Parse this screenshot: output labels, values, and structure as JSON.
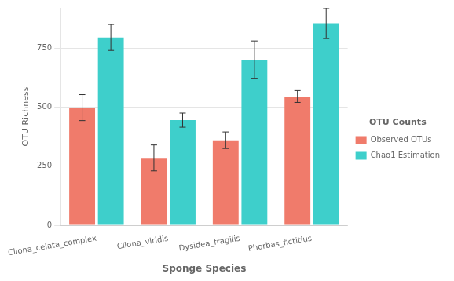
{
  "chart_data": {
    "type": "bar",
    "categories": [
      "Cliona_celata_complex",
      "Cliona_viridis",
      "Dysidea_fragilis",
      "Phorbas_fictitius"
    ],
    "series": [
      {
        "name": "Observed OTUs",
        "color": "#F07B6B",
        "values": [
          498,
          285,
          360,
          545
        ],
        "errors": [
          55,
          55,
          35,
          25
        ]
      },
      {
        "name": "Chao1 Estimation",
        "color": "#3ECFCB",
        "values": [
          795,
          445,
          700,
          855
        ],
        "errors": [
          55,
          30,
          80,
          65
        ]
      }
    ],
    "xlabel": "Sponge Species",
    "ylabel": "OTU Richness",
    "legend_title": "OTU Counts",
    "legend": "right",
    "ylim": [
      0,
      920
    ],
    "yticks": [
      0,
      250,
      500,
      750
    ],
    "grid": true
  }
}
